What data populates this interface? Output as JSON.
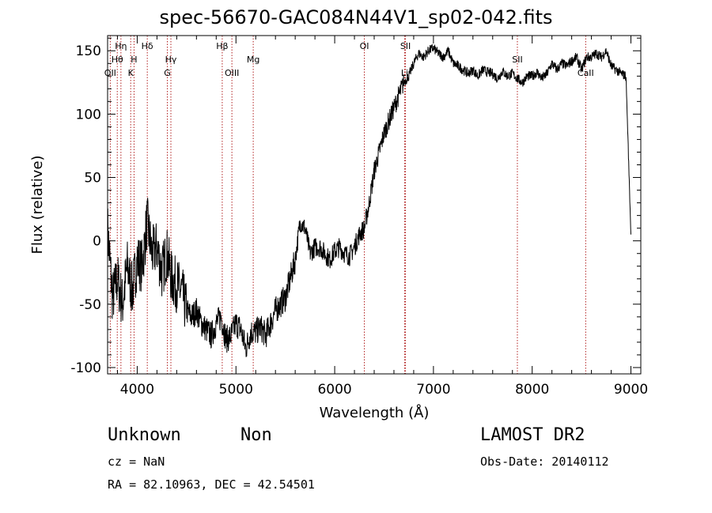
{
  "chart_data": {
    "type": "line",
    "title": "spec-56670-GAC084N44V1_sp02-042.fits",
    "xlabel": "Wavelength (Å)",
    "ylabel": "Flux (relative)",
    "xlim": [
      3700,
      9100
    ],
    "ylim": [
      -105,
      162
    ],
    "xticks": [
      4000,
      5000,
      6000,
      7000,
      8000,
      9000
    ],
    "yticks": [
      -100,
      -50,
      0,
      50,
      100,
      150
    ],
    "grid": false,
    "line_color": "#000000",
    "marker_color": "#b22222",
    "series": [
      {
        "x": [
          3700,
          3750,
          3800,
          3850,
          3900,
          3950,
          4000,
          4050,
          4100,
          4150,
          4200,
          4250,
          4300,
          4350,
          4400,
          4450,
          4500,
          4550,
          4600,
          4650,
          4700,
          4750,
          4800,
          4850,
          4900,
          4950,
          5000,
          5050,
          5100,
          5150,
          5200,
          5250,
          5300,
          5350,
          5400,
          5450,
          5500,
          5550,
          5600,
          5650,
          5700,
          5750,
          5800,
          5850,
          5900,
          5950,
          6000,
          6050,
          6100,
          6150,
          6200,
          6250,
          6300,
          6350,
          6400,
          6450,
          6500,
          6550,
          6600,
          6650,
          6700,
          6750,
          6800,
          6850,
          6900,
          6950,
          7000,
          7050,
          7100,
          7150,
          7200,
          7250,
          7300,
          7350,
          7400,
          7450,
          7500,
          7550,
          7600,
          7650,
          7700,
          7750,
          7800,
          7850,
          7900,
          7950,
          8000,
          8050,
          8100,
          8150,
          8200,
          8250,
          8300,
          8350,
          8400,
          8450,
          8500,
          8550,
          8600,
          8650,
          8700,
          8750,
          8800,
          8850,
          8900,
          8950,
          9000
        ],
        "y": [
          10,
          -45,
          -30,
          -50,
          -20,
          -40,
          -15,
          -20,
          15,
          -10,
          -5,
          -25,
          -10,
          -30,
          -35,
          -40,
          -55,
          -60,
          -55,
          -65,
          -70,
          -75,
          -65,
          -60,
          -78,
          -75,
          -65,
          -70,
          -85,
          -72,
          -72,
          -68,
          -75,
          -65,
          -55,
          -50,
          -45,
          -30,
          -15,
          15,
          10,
          -10,
          -5,
          -5,
          -10,
          -15,
          -8,
          -5,
          -10,
          -12,
          -5,
          5,
          10,
          30,
          55,
          70,
          85,
          95,
          105,
          115,
          125,
          130,
          140,
          148,
          145,
          150,
          152,
          148,
          145,
          150,
          140,
          138,
          135,
          132,
          135,
          130,
          135,
          133,
          132,
          128,
          134,
          130,
          132,
          128,
          125,
          130,
          130,
          133,
          128,
          132,
          140,
          135,
          140,
          138,
          142,
          145,
          135,
          145,
          145,
          148,
          145,
          150,
          138,
          135,
          132,
          130,
          5
        ]
      }
    ],
    "lines": [
      {
        "label": "Hη",
        "x": 3835,
        "row": 1
      },
      {
        "label": "Hθ",
        "x": 3798,
        "row": 2
      },
      {
        "label": "OII",
        "x": 3727,
        "row": 3
      },
      {
        "label": "H",
        "x": 3968,
        "row": 2
      },
      {
        "label": "K",
        "x": 3934,
        "row": 3
      },
      {
        "label": "Hδ",
        "x": 4102,
        "row": 1
      },
      {
        "label": "Hγ",
        "x": 4341,
        "row": 2
      },
      {
        "label": "G",
        "x": 4305,
        "row": 3
      },
      {
        "label": "Hβ",
        "x": 4861,
        "row": 1
      },
      {
        "label": "OIII",
        "x": 4959,
        "row": 3
      },
      {
        "label": "Mg",
        "x": 5175,
        "row": 2
      },
      {
        "label": "OI",
        "x": 6300,
        "row": 1
      },
      {
        "label": "SII",
        "x": 6717,
        "row": 1
      },
      {
        "label": "Li",
        "x": 6708,
        "row": 3
      },
      {
        "label": "SII",
        "x": 7850,
        "row": 2
      },
      {
        "label": "CaII",
        "x": 8542,
        "row": 3
      }
    ]
  },
  "footer": {
    "class_label": "Unknown",
    "subclass_label": "Non",
    "survey": "LAMOST DR2",
    "cz": "cz = NaN",
    "obs_date": "Obs-Date: 20140112",
    "coords": "RA =  82.10963, DEC =  42.54501"
  }
}
